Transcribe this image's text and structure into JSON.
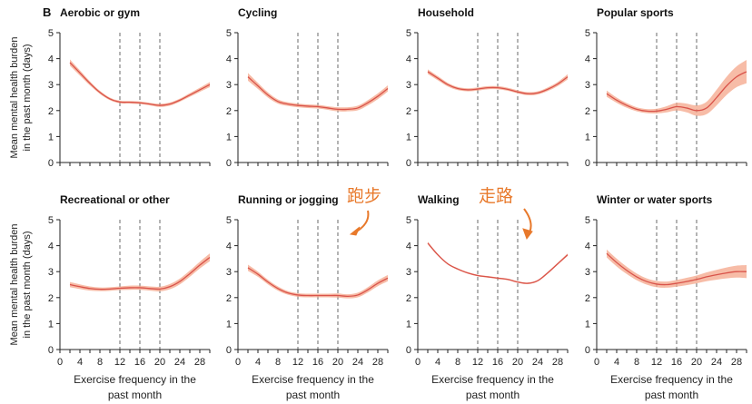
{
  "panel_letter": "B",
  "chart_data": {
    "type": "line",
    "grid_layout": {
      "rows": 2,
      "cols": 4
    },
    "shared": {
      "ylabel": "Mean mental health burden in the past month (days)",
      "ylabel_lines": [
        "Mean mental health burden",
        "in the past month (days)"
      ],
      "xlabel": "Exercise frequency in the past month",
      "xlabel_lines": [
        "Exercise frequency in the",
        "past month"
      ],
      "ylim": [
        0,
        5
      ],
      "yticks": [
        0,
        1,
        2,
        3,
        4,
        5
      ],
      "xlim": [
        0,
        30
      ],
      "xticks": [
        0,
        4,
        8,
        12,
        16,
        20,
        24,
        28
      ],
      "reference_lines_x": [
        12,
        16,
        20
      ],
      "line_color": "#d9534a",
      "band_color": "#f4a58a"
    },
    "panels": [
      {
        "title": "Aerobic or gym",
        "x": [
          2,
          4,
          6,
          8,
          10,
          12,
          14,
          16,
          18,
          20,
          22,
          24,
          26,
          28,
          30
        ],
        "y": [
          3.85,
          3.45,
          3.05,
          2.7,
          2.45,
          2.33,
          2.32,
          2.3,
          2.25,
          2.2,
          2.25,
          2.4,
          2.6,
          2.8,
          3.0
        ],
        "ci_half": [
          0.12,
          0.1,
          0.08,
          0.06,
          0.05,
          0.05,
          0.05,
          0.05,
          0.05,
          0.06,
          0.06,
          0.06,
          0.07,
          0.08,
          0.1
        ]
      },
      {
        "title": "Cycling",
        "x": [
          2,
          4,
          6,
          8,
          10,
          12,
          14,
          16,
          18,
          20,
          22,
          24,
          26,
          28,
          30
        ],
        "y": [
          3.3,
          2.95,
          2.6,
          2.35,
          2.25,
          2.2,
          2.17,
          2.15,
          2.1,
          2.05,
          2.05,
          2.1,
          2.3,
          2.55,
          2.85
        ],
        "ci_half": [
          0.15,
          0.12,
          0.1,
          0.08,
          0.07,
          0.07,
          0.07,
          0.07,
          0.07,
          0.08,
          0.08,
          0.09,
          0.1,
          0.11,
          0.12
        ]
      },
      {
        "title": "Household",
        "x": [
          2,
          4,
          6,
          8,
          10,
          12,
          14,
          16,
          18,
          20,
          22,
          24,
          26,
          28,
          30
        ],
        "y": [
          3.5,
          3.25,
          3.0,
          2.85,
          2.8,
          2.83,
          2.88,
          2.88,
          2.82,
          2.72,
          2.65,
          2.68,
          2.82,
          3.02,
          3.3
        ],
        "ci_half": [
          0.09,
          0.08,
          0.07,
          0.06,
          0.06,
          0.06,
          0.06,
          0.06,
          0.06,
          0.06,
          0.06,
          0.06,
          0.07,
          0.08,
          0.1
        ]
      },
      {
        "title": "Popular sports",
        "x": [
          2,
          4,
          6,
          8,
          10,
          12,
          14,
          16,
          18,
          20,
          22,
          24,
          26,
          28,
          30
        ],
        "y": [
          2.65,
          2.4,
          2.2,
          2.05,
          1.98,
          1.98,
          2.05,
          2.15,
          2.1,
          2.0,
          2.1,
          2.5,
          2.95,
          3.3,
          3.5
        ],
        "ci_half": [
          0.12,
          0.1,
          0.09,
          0.08,
          0.08,
          0.09,
          0.12,
          0.15,
          0.17,
          0.2,
          0.24,
          0.3,
          0.35,
          0.4,
          0.45
        ]
      },
      {
        "title": "Recreational or other",
        "x": [
          2,
          4,
          6,
          8,
          10,
          12,
          14,
          16,
          18,
          20,
          22,
          24,
          26,
          28,
          30
        ],
        "y": [
          2.5,
          2.42,
          2.35,
          2.32,
          2.33,
          2.36,
          2.38,
          2.38,
          2.35,
          2.33,
          2.42,
          2.62,
          2.92,
          3.25,
          3.55
        ],
        "ci_half": [
          0.1,
          0.09,
          0.08,
          0.07,
          0.07,
          0.07,
          0.08,
          0.08,
          0.08,
          0.09,
          0.1,
          0.11,
          0.12,
          0.13,
          0.15
        ]
      },
      {
        "title": "Running or jogging",
        "x": [
          2,
          4,
          6,
          8,
          10,
          12,
          14,
          16,
          18,
          20,
          22,
          24,
          26,
          28,
          30
        ],
        "y": [
          3.15,
          2.9,
          2.6,
          2.35,
          2.18,
          2.1,
          2.08,
          2.08,
          2.08,
          2.08,
          2.05,
          2.1,
          2.3,
          2.55,
          2.75
        ],
        "ci_half": [
          0.12,
          0.1,
          0.09,
          0.08,
          0.07,
          0.07,
          0.07,
          0.07,
          0.07,
          0.08,
          0.08,
          0.09,
          0.1,
          0.11,
          0.12
        ]
      },
      {
        "title": "Walking",
        "x": [
          2,
          4,
          6,
          8,
          10,
          12,
          14,
          16,
          18,
          20,
          22,
          24,
          26,
          28,
          30
        ],
        "y": [
          4.1,
          3.65,
          3.3,
          3.1,
          2.95,
          2.85,
          2.8,
          2.75,
          2.7,
          2.6,
          2.55,
          2.65,
          2.95,
          3.3,
          3.65
        ],
        "ci_half": [
          0.05,
          0.04,
          0.03,
          0.03,
          0.03,
          0.03,
          0.03,
          0.03,
          0.03,
          0.03,
          0.03,
          0.03,
          0.04,
          0.04,
          0.05
        ]
      },
      {
        "title": "Winter or water sports",
        "x": [
          2,
          4,
          6,
          8,
          10,
          12,
          14,
          16,
          18,
          20,
          22,
          24,
          26,
          28,
          30
        ],
        "y": [
          3.7,
          3.35,
          3.05,
          2.8,
          2.62,
          2.52,
          2.5,
          2.55,
          2.62,
          2.7,
          2.8,
          2.88,
          2.95,
          3.0,
          3.0
        ],
        "ci_half": [
          0.15,
          0.15,
          0.14,
          0.13,
          0.12,
          0.12,
          0.12,
          0.13,
          0.14,
          0.15,
          0.17,
          0.19,
          0.21,
          0.23,
          0.25
        ]
      }
    ],
    "annotations": [
      {
        "panel": "Running or jogging",
        "text": "跑步"
      },
      {
        "panel": "Walking",
        "text": "走路"
      }
    ],
    "annotation_color": "#e8792b"
  }
}
